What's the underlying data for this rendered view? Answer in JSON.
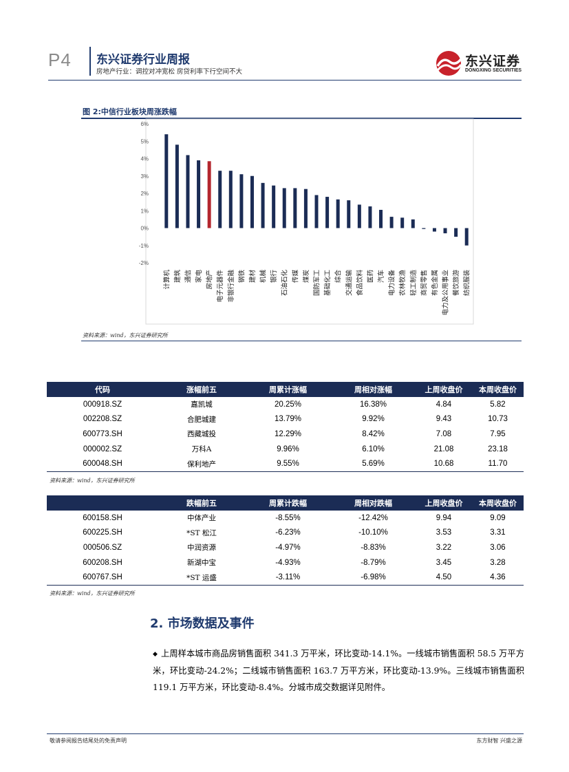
{
  "header": {
    "page_number": "P4",
    "report_title": "东兴证券行业周报",
    "report_subtitle": "房地产行业：调控对冲宽松 房贷利率下行空间不大",
    "logo_text": "东兴证券",
    "logo_sub": "DONGXING SECURITIES"
  },
  "figure": {
    "title": "图 2:中信行业板块周涨跌幅",
    "source": "资料来源：wind，东兴证券研究所"
  },
  "chart_data": {
    "type": "bar",
    "title": "中信行业板块周涨跌幅",
    "categories": [
      "计算机",
      "建筑",
      "通信",
      "家电",
      "房地产",
      "电子元器件",
      "非银行金融",
      "钢铁",
      "建材",
      "机械",
      "银行",
      "石油石化",
      "传媒",
      "煤炭",
      "国防军工",
      "基础化工",
      "综合",
      "交通运输",
      "食品饮料",
      "医药",
      "汽车",
      "电力设备",
      "农林牧渔",
      "轻工制造",
      "商贸零售",
      "有色金属",
      "电力及公用事业",
      "餐饮旅游",
      "纺织服装"
    ],
    "values": [
      5.4,
      4.8,
      4.2,
      3.9,
      3.85,
      3.3,
      3.3,
      3.1,
      3.0,
      2.6,
      2.45,
      2.3,
      2.3,
      2.25,
      1.9,
      1.8,
      1.65,
      1.6,
      1.35,
      1.25,
      1.05,
      0.65,
      0.6,
      0.5,
      -0.05,
      -0.2,
      -0.3,
      -0.5,
      -1.0
    ],
    "highlight_index": 4,
    "ylim": [
      -2,
      6
    ],
    "yticks": [
      "-2%",
      "-1%",
      "0%",
      "1%",
      "2%",
      "3%",
      "4%",
      "5%",
      "6%"
    ],
    "colors": {
      "bar": "#1b2c55",
      "highlight": "#b3262e"
    }
  },
  "gainers": {
    "headers": [
      "代码",
      "涨幅前五",
      "周累计涨幅",
      "周相对涨幅",
      "上周收盘价",
      "本周收盘价"
    ],
    "rows": [
      [
        "000918.SZ",
        "嘉凯城",
        "20.25%",
        "16.38%",
        "4.84",
        "5.82"
      ],
      [
        "002208.SZ",
        "合肥城建",
        "13.79%",
        "9.92%",
        "9.43",
        "10.73"
      ],
      [
        "600773.SH",
        "西藏城投",
        "12.29%",
        "8.42%",
        "7.08",
        "7.95"
      ],
      [
        "000002.SZ",
        "万科A",
        "9.96%",
        "6.10%",
        "21.08",
        "23.18"
      ],
      [
        "600048.SH",
        "保利地产",
        "9.55%",
        "5.69%",
        "10.68",
        "11.70"
      ]
    ],
    "source": "资料来源：wind，东兴证券研究所"
  },
  "losers": {
    "headers": [
      "",
      "跌幅前五",
      "周累计跌幅",
      "周相对跌幅",
      "上周收盘价",
      "本周收盘价"
    ],
    "rows": [
      [
        "600158.SH",
        "中体产业",
        "-8.55%",
        "-12.42%",
        "9.94",
        "9.09"
      ],
      [
        "600225.SH",
        "*ST 松江",
        "-6.23%",
        "-10.10%",
        "3.53",
        "3.31"
      ],
      [
        "000506.SZ",
        "中润资源",
        "-4.97%",
        "-8.83%",
        "3.22",
        "3.06"
      ],
      [
        "600208.SH",
        "新湖中宝",
        "-4.93%",
        "-8.79%",
        "3.45",
        "3.28"
      ],
      [
        "600767.SH",
        "*ST 运盛",
        "-3.11%",
        "-6.98%",
        "4.50",
        "4.36"
      ]
    ],
    "source": "资料来源：wind，东兴证券研究所"
  },
  "section": {
    "title": "2. 市场数据及事件",
    "bullet": "◆",
    "paragraph": "上周样本城市商品房销售面积 341.3 万平米，环比变动-14.1%。一线城市销售面积 58.5 万平方米，环比变动-24.2%；二线城市销售面积 163.7 万平方米，环比变动-13.9%。三线城市销售面积 119.1 万平方米，环比变动-8.4%。分城市成交数据详见附件。"
  },
  "footer": {
    "left": "敬请参阅报告结尾处的免责声明",
    "right": "东方财智 兴盛之源"
  }
}
